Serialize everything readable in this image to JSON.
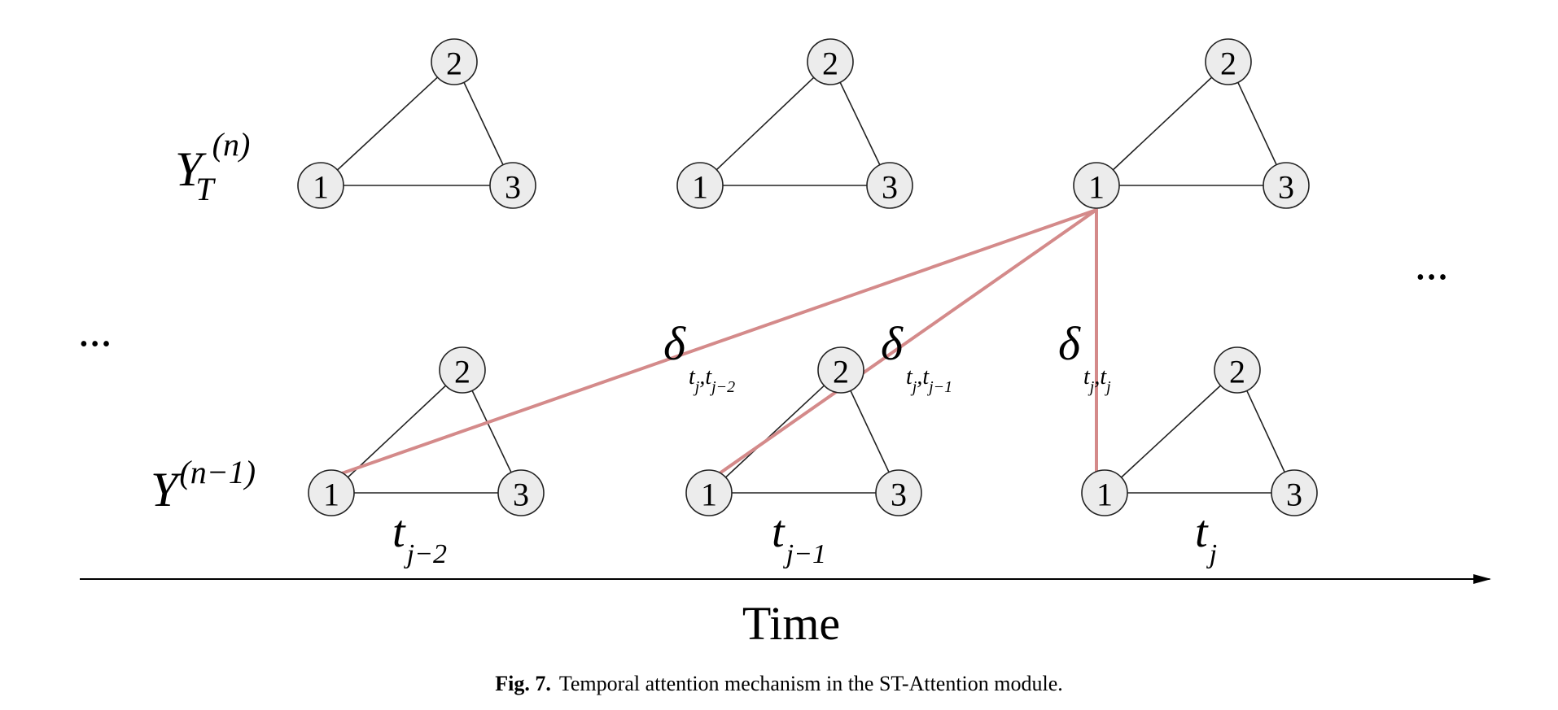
{
  "rows": {
    "top": {
      "symbol": "Y",
      "subscript": "T",
      "superscript": "(n)"
    },
    "bottom": {
      "symbol": "Y",
      "superscript": "(n−1)"
    }
  },
  "node_labels": [
    "1",
    "2",
    "3"
  ],
  "attention": [
    {
      "sym": "δ",
      "sub1": "t",
      "sub1sub": "j",
      "sep": ",",
      "sub2": "t",
      "sub2sub": "j−2"
    },
    {
      "sym": "δ",
      "sub1": "t",
      "sub1sub": "j",
      "sep": ",",
      "sub2": "t",
      "sub2sub": "j−1"
    },
    {
      "sym": "δ",
      "sub1": "t",
      "sub1sub": "j",
      "sep": ",",
      "sub2": "t",
      "sub2sub": "j"
    }
  ],
  "time_steps": [
    {
      "t": "t",
      "sub": "j−2"
    },
    {
      "t": "t",
      "sub": "j−1"
    },
    {
      "t": "t",
      "sub": "j"
    }
  ],
  "ellipsis": "•••",
  "axis_label": "Time",
  "caption": {
    "number": "Fig. 7.",
    "text": "Temporal attention mechanism in the ST-Attention module."
  },
  "colors": {
    "attention_line": "#d48a8a",
    "node_fill": "#ececec"
  }
}
